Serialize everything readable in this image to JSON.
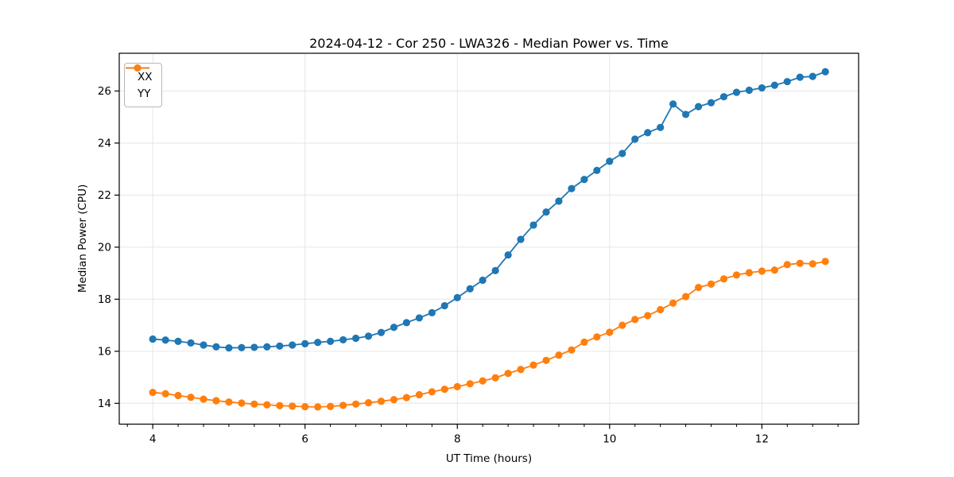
{
  "figure": {
    "background": "#ffffff",
    "title": "2024-04-12 - Cor 250 - LWA326 - Median Power vs. Time"
  },
  "chart_data": {
    "type": "line",
    "title": "2024-04-12 - Cor 250 - LWA326 - Median Power vs. Time",
    "xlabel": "UT Time (hours)",
    "ylabel": "Median Power (CPU)",
    "xlim": [
      3.56,
      13.27
    ],
    "ylim": [
      13.2,
      27.45
    ],
    "xticks": [
      4,
      6,
      8,
      10,
      12
    ],
    "yticks": [
      14,
      16,
      18,
      20,
      22,
      24,
      26
    ],
    "minor_xtick_step": 0.3333,
    "grid": true,
    "grid_color": "#e6e6e6",
    "legend_position": "upper-left",
    "marker": "circle",
    "x": [
      4.0,
      4.167,
      4.333,
      4.5,
      4.667,
      4.833,
      5.0,
      5.167,
      5.333,
      5.5,
      5.667,
      5.833,
      6.0,
      6.167,
      6.333,
      6.5,
      6.667,
      6.833,
      7.0,
      7.167,
      7.333,
      7.5,
      7.667,
      7.833,
      8.0,
      8.167,
      8.333,
      8.5,
      8.667,
      8.833,
      9.0,
      9.167,
      9.333,
      9.5,
      9.667,
      9.833,
      10.0,
      10.167,
      10.333,
      10.5,
      10.667,
      10.833,
      11.0,
      11.167,
      11.333,
      11.5,
      11.667,
      11.833,
      12.0,
      12.167,
      12.333,
      12.5,
      12.667,
      12.833
    ],
    "series": [
      {
        "name": "XX",
        "color": "#1f77b4",
        "values": [
          16.47,
          16.43,
          16.38,
          16.32,
          16.24,
          16.17,
          16.13,
          16.14,
          16.15,
          16.17,
          16.2,
          16.24,
          16.29,
          16.34,
          16.38,
          16.44,
          16.5,
          16.58,
          16.72,
          16.92,
          17.1,
          17.28,
          17.48,
          17.75,
          18.06,
          18.4,
          18.73,
          19.1,
          19.7,
          20.3,
          20.85,
          21.35,
          21.77,
          22.25,
          22.6,
          22.95,
          23.3,
          23.6,
          24.15,
          24.4,
          24.6,
          25.5,
          25.1,
          25.4,
          25.55,
          25.78,
          25.95,
          26.03,
          26.12,
          26.22,
          26.36,
          26.53,
          26.56,
          26.74
        ]
      },
      {
        "name": "YY",
        "color": "#ff7f0e",
        "values": [
          14.42,
          14.37,
          14.3,
          14.23,
          14.16,
          14.1,
          14.05,
          14.01,
          13.97,
          13.94,
          13.91,
          13.89,
          13.87,
          13.86,
          13.88,
          13.92,
          13.97,
          14.02,
          14.08,
          14.14,
          14.22,
          14.33,
          14.44,
          14.54,
          14.64,
          14.75,
          14.86,
          14.98,
          15.15,
          15.3,
          15.47,
          15.65,
          15.85,
          16.05,
          16.35,
          16.55,
          16.73,
          17.0,
          17.22,
          17.37,
          17.6,
          17.85,
          18.1,
          18.45,
          18.58,
          18.78,
          18.93,
          19.02,
          19.08,
          19.12,
          19.33,
          19.38,
          19.36,
          19.45
        ]
      }
    ]
  }
}
